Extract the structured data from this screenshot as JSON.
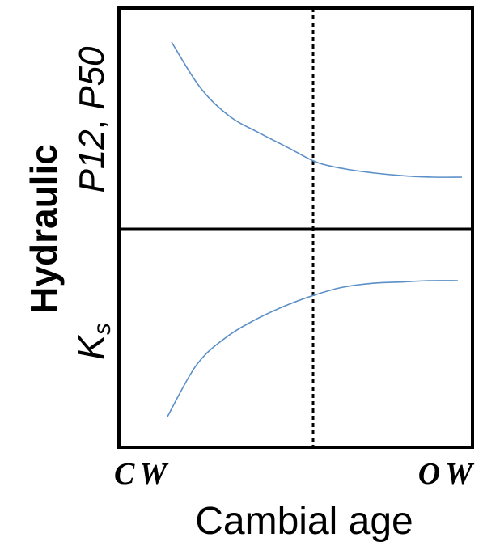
{
  "figure": {
    "y_axis_title": "Hydraulic",
    "y_top_label": {
      "P12": "P12",
      "separator": ", ",
      "P50": "P50"
    },
    "y_bottom_label": {
      "base": "K",
      "subscript": "s"
    },
    "x_tick_left": "CW",
    "x_tick_right": "OW",
    "x_axis_title": "Cambial age"
  },
  "colors": {
    "curve": "#5b8fc7",
    "frame": "#000000"
  },
  "chart_data": [
    {
      "panel": "top",
      "type": "line",
      "series": [
        {
          "name": "P12, P50",
          "x": [
            0.0,
            0.1,
            0.2,
            0.3,
            0.4,
            0.5,
            0.6,
            0.7,
            0.8,
            0.9,
            1.0
          ],
          "y": [
            1.0,
            0.66,
            0.45,
            0.33,
            0.22,
            0.11,
            0.06,
            0.03,
            0.01,
            0.0,
            0.0
          ]
        }
      ],
      "divider_x": 0.48
    },
    {
      "panel": "bottom",
      "type": "line",
      "series": [
        {
          "name": "Ks",
          "x": [
            0.0,
            0.1,
            0.2,
            0.3,
            0.4,
            0.5,
            0.6,
            0.7,
            0.8,
            0.9,
            1.0
          ],
          "y": [
            0.0,
            0.38,
            0.58,
            0.71,
            0.81,
            0.89,
            0.95,
            0.98,
            0.99,
            1.0,
            1.0
          ]
        }
      ],
      "divider_x": 0.48
    }
  ]
}
